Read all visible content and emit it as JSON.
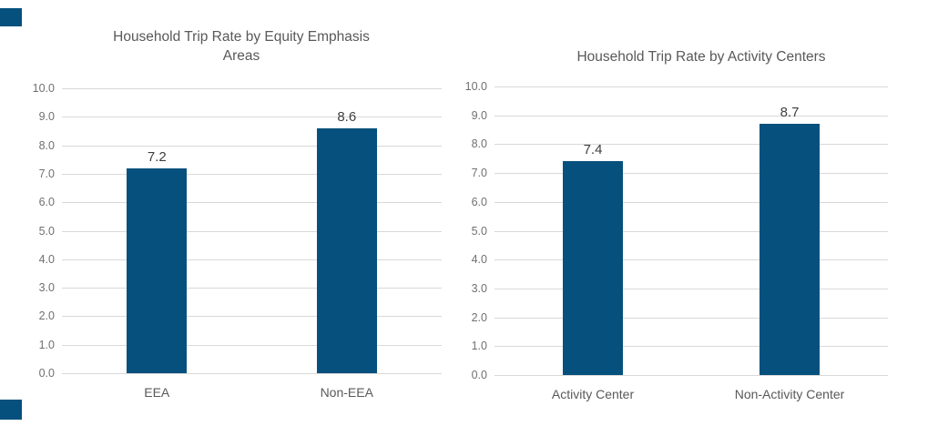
{
  "page": {
    "background_color": "#ffffff",
    "accent_color": "#05507d"
  },
  "decorations": {
    "top_left_square": {
      "name": "decorative-square",
      "color": "#05507d"
    },
    "bottom_left_square": {
      "name": "decorative-square",
      "color": "#05507d"
    }
  },
  "chart_data": [
    {
      "type": "bar",
      "title": "Household Trip Rate by Equity Emphasis Areas",
      "title_lines": [
        "Household Trip Rate by Equity Emphasis",
        "Areas"
      ],
      "categories": [
        "EEA",
        "Non-EEA"
      ],
      "values": [
        7.2,
        8.6
      ],
      "data_labels": [
        "7.2",
        "8.6"
      ],
      "xlabel": "",
      "ylabel": "",
      "ylim": [
        0,
        10
      ],
      "ytick_labels": [
        "10.0",
        "9.0",
        "8.0",
        "7.0",
        "6.0",
        "5.0",
        "4.0",
        "3.0",
        "2.0",
        "1.0",
        "0.0"
      ],
      "grid": true,
      "legend": "none",
      "bar_color": "#05507d",
      "gridline_color": "#d9d9d9",
      "title_color": "#595959",
      "tick_label_color": "#707070",
      "data_label_color": "#3f3f3f"
    },
    {
      "type": "bar",
      "title": "Household Trip Rate by Activity Centers",
      "title_lines": [
        "Household Trip Rate by Activity Centers"
      ],
      "categories": [
        "Activity Center",
        "Non-Activity Center"
      ],
      "values": [
        7.4,
        8.7
      ],
      "data_labels": [
        "7.4",
        "8.7"
      ],
      "xlabel": "",
      "ylabel": "",
      "ylim": [
        0,
        10
      ],
      "ytick_labels": [
        "10.0",
        "9.0",
        "8.0",
        "7.0",
        "6.0",
        "5.0",
        "4.0",
        "3.0",
        "2.0",
        "1.0",
        "0.0"
      ],
      "grid": true,
      "legend": "none",
      "bar_color": "#05507d",
      "gridline_color": "#d9d9d9",
      "title_color": "#595959",
      "tick_label_color": "#707070",
      "data_label_color": "#3f3f3f"
    }
  ]
}
